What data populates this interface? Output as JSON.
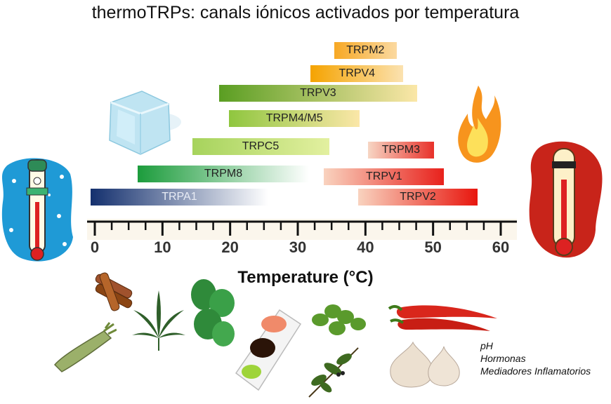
{
  "title": "thermoTRPs: canals iónicos activados por temperatura",
  "chart_data": {
    "type": "range-bar",
    "xlabel": "Temperature (°C)",
    "xlim": [
      0,
      60
    ],
    "ticks": [
      0,
      10,
      20,
      30,
      40,
      50,
      60
    ],
    "channels": [
      {
        "name": "TRPM2",
        "start": 36,
        "end": 44,
        "color_from": "#f7a824",
        "color_to": "#fbd9a0"
      },
      {
        "name": "TRPV4",
        "start": 32.5,
        "end": 45,
        "color_from": "#f5a300",
        "color_to": "#fbe2b0"
      },
      {
        "name": "TRPV3",
        "start": 19,
        "end": 47,
        "color_from": "#5a9e22",
        "color_to": "#fbe7a8"
      },
      {
        "name": "TRPM4/M5",
        "start": 20.5,
        "end": 38.5,
        "color_from": "#8fc63f",
        "color_to": "#fbe7a8"
      },
      {
        "name": "TRPC5",
        "start": 15,
        "end": 34,
        "color_from": "#a6d35c",
        "color_to": "#e3f0a0"
      },
      {
        "name": "TRPM3",
        "start": 41,
        "end": 49.5,
        "color_from": "#f7d6c4",
        "color_to": "#e8312a"
      },
      {
        "name": "TRPM8",
        "start": 7,
        "end": 31,
        "color_from": "#1c9c3c",
        "color_to": "#ffffff"
      },
      {
        "name": "TRPV1",
        "start": 34.5,
        "end": 51,
        "color_from": "#f9d3bf",
        "color_to": "#e8211c"
      },
      {
        "name": "TRPA1",
        "start": 0,
        "end": 25,
        "color_from": "#14306e",
        "color_to": "#ffffff"
      },
      {
        "name": "TRPV2",
        "start": 39.5,
        "end": 56,
        "color_from": "#f9d3bf",
        "color_to": "#e8160e"
      }
    ]
  },
  "notes": [
    "pH",
    "Hormonas",
    "Mediadores Inflamatorios"
  ]
}
